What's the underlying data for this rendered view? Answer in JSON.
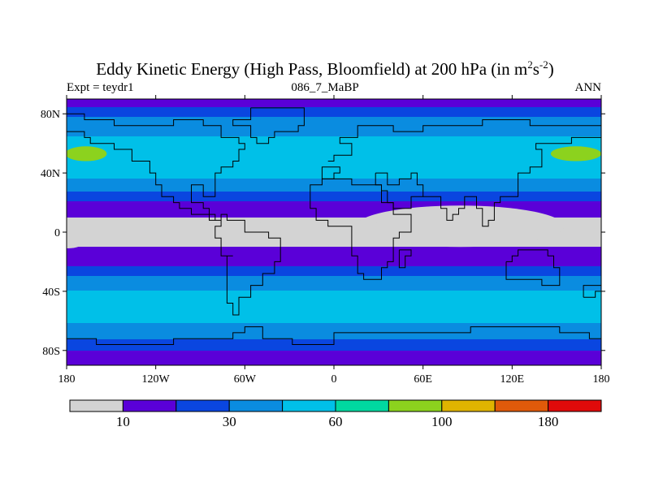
{
  "header": {
    "title_main": "Eddy Kinetic Energy (High Pass, Bloomfield) at 200 hPa (in m",
    "title_sup1": "2",
    "title_mid": "s",
    "title_sup2": "-2",
    "title_end": ")",
    "subtitle": "086_7_MaBP",
    "left_note": "Expt = teydr1",
    "right_note": "ANN"
  },
  "chart_data": {
    "type": "heatmap",
    "title": "Eddy Kinetic Energy (High Pass, Bloomfield) at 200 hPa (in m2s-2)",
    "subtitle": "086_7_MaBP",
    "x_range": [
      -180,
      180
    ],
    "y_range": [
      -90,
      90
    ],
    "x_ticks": [
      {
        "value": -180,
        "label": "180"
      },
      {
        "value": -120,
        "label": "120W"
      },
      {
        "value": -60,
        "label": "60W"
      },
      {
        "value": 0,
        "label": "0"
      },
      {
        "value": 60,
        "label": "60E"
      },
      {
        "value": 120,
        "label": "120E"
      },
      {
        "value": 180,
        "label": "180"
      }
    ],
    "y_ticks": [
      {
        "value": 80,
        "label": "80N"
      },
      {
        "value": 40,
        "label": "40N"
      },
      {
        "value": 0,
        "label": "0"
      },
      {
        "value": -40,
        "label": "40S"
      },
      {
        "value": -80,
        "label": "80S"
      }
    ],
    "colorbar": {
      "colors": [
        "#d3d3d3",
        "#5a00d8",
        "#0a46e0",
        "#0a8ce0",
        "#00c0e8",
        "#00d8a0",
        "#8cd21e",
        "#e0b400",
        "#e05a0a",
        "#e00a0a"
      ],
      "boundaries": [
        0,
        10,
        20,
        30,
        45,
        60,
        80,
        100,
        140,
        180
      ],
      "labels": [
        {
          "value": 10,
          "label": "10"
        },
        {
          "value": 30,
          "label": "30"
        },
        {
          "value": 60,
          "label": "60"
        },
        {
          "value": 100,
          "label": "100"
        },
        {
          "value": 180,
          "label": "180"
        }
      ]
    },
    "zonal_profile": [
      {
        "lat": 90,
        "value": 10
      },
      {
        "lat": 85,
        "value": 20
      },
      {
        "lat": 78,
        "value": 30
      },
      {
        "lat": 70,
        "value": 40
      },
      {
        "lat": 60,
        "value": 50
      },
      {
        "lat": 50,
        "value": 60
      },
      {
        "lat": 40,
        "value": 50
      },
      {
        "lat": 30,
        "value": 35
      },
      {
        "lat": 22,
        "value": 22
      },
      {
        "lat": 15,
        "value": 12
      },
      {
        "lat": 5,
        "value": 8
      },
      {
        "lat": -5,
        "value": 8
      },
      {
        "lat": -15,
        "value": 12
      },
      {
        "lat": -25,
        "value": 22
      },
      {
        "lat": -35,
        "value": 38
      },
      {
        "lat": -45,
        "value": 55
      },
      {
        "lat": -50,
        "value": 60
      },
      {
        "lat": -58,
        "value": 50
      },
      {
        "lat": -66,
        "value": 40
      },
      {
        "lat": -74,
        "value": 28
      },
      {
        "lat": -82,
        "value": 18
      },
      {
        "lat": -90,
        "value": 10
      }
    ],
    "features": [
      {
        "name": "max-north-west",
        "type": "ellipse",
        "lon": -167,
        "lat": 53,
        "rlon": 14,
        "rlat": 5,
        "value": 90
      },
      {
        "name": "max-north-east",
        "type": "ellipse",
        "lon": 163,
        "lat": 53,
        "rlon": 17,
        "rlat": 5,
        "value": 90
      },
      {
        "name": "low-equator-east",
        "type": "ellipse",
        "lon": 85,
        "lat": 4,
        "rlon": 70,
        "rlat": 14,
        "value": 5
      },
      {
        "name": "low-equator-center",
        "type": "ellipse",
        "lon": -10,
        "lat": 0,
        "rlon": 55,
        "rlat": 9,
        "value": 5
      },
      {
        "name": "low-equator-west",
        "type": "ellipse",
        "lon": -180,
        "lat": -8,
        "rlon": 10,
        "rlat": 3,
        "value": 5
      }
    ]
  }
}
